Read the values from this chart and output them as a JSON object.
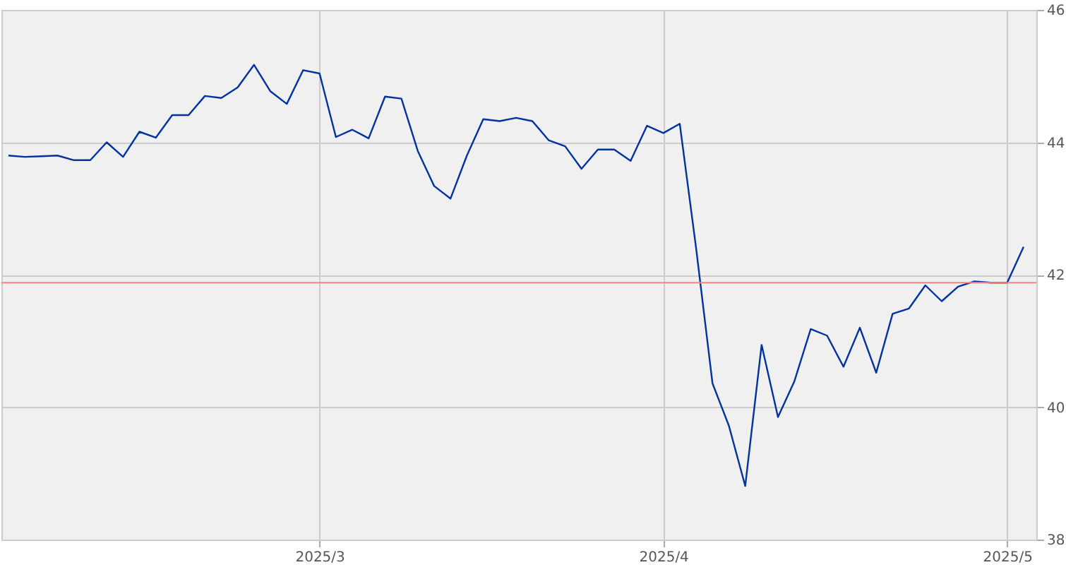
{
  "chart_data": {
    "type": "line",
    "categories": [
      null,
      null,
      null,
      null,
      null,
      null,
      null,
      null,
      null,
      null,
      null,
      null,
      null,
      null,
      null,
      null,
      null,
      null,
      null,
      "2025/3",
      null,
      null,
      null,
      null,
      null,
      null,
      null,
      null,
      null,
      null,
      null,
      null,
      null,
      null,
      null,
      null,
      null,
      null,
      null,
      null,
      "2025/4",
      null,
      null,
      null,
      null,
      null,
      null,
      null,
      null,
      null,
      null,
      null,
      null,
      null,
      null,
      null,
      null,
      null,
      null,
      null,
      null,
      "2025/5",
      null
    ],
    "series": [
      {
        "color": "#0033a0",
        "values": [
          43.8,
          43.78,
          43.79,
          43.8,
          43.73,
          43.73,
          44.0,
          43.78,
          44.16,
          44.07,
          44.41,
          44.41,
          44.7,
          44.67,
          44.83,
          45.17,
          44.77,
          44.58,
          45.09,
          45.04,
          44.08,
          44.19,
          44.06,
          44.69,
          44.66,
          43.87,
          43.34,
          43.15,
          43.8,
          44.35,
          44.32,
          44.37,
          44.32,
          44.03,
          43.94,
          43.6,
          43.89,
          43.89,
          43.72,
          44.25,
          44.14,
          44.28,
          42.4,
          40.36,
          39.72,
          38.81,
          40.94,
          39.85,
          40.39,
          41.18,
          41.08,
          40.61,
          41.2,
          40.52,
          41.41,
          41.49,
          41.84,
          41.6,
          41.82,
          41.9,
          41.88,
          41.88,
          42.42
        ]
      }
    ],
    "ylim": [
      38,
      46
    ],
    "yticks": [
      38,
      40,
      42,
      44,
      46
    ],
    "grid": true,
    "ref_lines": [
      {
        "axis": "y",
        "value": 41.88,
        "color": "#ff8080"
      }
    ]
  }
}
